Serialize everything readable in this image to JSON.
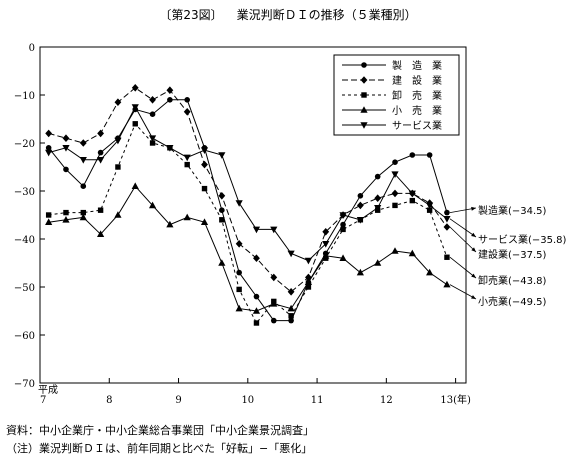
{
  "figure_number": "〔第23図〕",
  "figure_title": "業況判断ＤＩの推移（５業種別）",
  "notes": {
    "source": "資料：中小企業庁・中小企業総合事業団「中小企業景況調査」",
    "note": "（注）業況判断ＤＩは、前年同期と比べた「好転」−「悪化」"
  },
  "chart_data": {
    "type": "line",
    "title": "業況判断ＤＩの推移（５業種別）",
    "xlabel": "",
    "ylabel": "",
    "x_era_label": "平成",
    "x_ticks": [
      "7",
      "8",
      "9",
      "10",
      "11",
      "12",
      "13(年)"
    ],
    "xlim": [
      7,
      13.15
    ],
    "ylim": [
      -70,
      0
    ],
    "y_ticks": [
      0,
      -10,
      -20,
      -30,
      -40,
      -50,
      -60,
      -70
    ],
    "grid": false,
    "legend_position": "top-right",
    "series": [
      {
        "name": "製　造　業",
        "end_label": "製造業(−34.5)",
        "dash": "",
        "marker": "circle",
        "values": [
          -21,
          -25.5,
          -29,
          -22,
          -19,
          -13,
          -14,
          -11,
          -11,
          -21,
          -34,
          -47,
          -52,
          -57,
          -57,
          -49,
          -43,
          -37,
          -31,
          -27,
          -24,
          -22.5,
          -22.5,
          -34.5
        ]
      },
      {
        "name": "建　設　業",
        "end_label": "建設業(−37.5)",
        "dash": "6,3",
        "marker": "diamond",
        "values": [
          -18,
          -19,
          -20,
          -18,
          -11.5,
          -8.5,
          -11,
          -9,
          -13.5,
          -24.5,
          -31,
          -41,
          -44,
          -48,
          -51,
          -48,
          -38.5,
          -35,
          -33,
          -31.5,
          -30.5,
          -30.5,
          -32.5,
          -37.5
        ]
      },
      {
        "name": "卸　売　業",
        "end_label": "卸売業(−43.8)",
        "dash": "3,3",
        "marker": "square",
        "values": [
          -35,
          -34.5,
          -34.5,
          -34,
          -25,
          -16,
          -20,
          -21,
          -24.5,
          -29.5,
          -36,
          -50.5,
          -57.5,
          -53,
          -56,
          -50,
          -44,
          -38,
          -36,
          -34,
          -33,
          -32,
          -34,
          -43.8
        ]
      },
      {
        "name": "小　売　業",
        "end_label": "小売業(−49.5)",
        "dash": "",
        "marker": "triangle-up",
        "values": [
          -36.5,
          -36,
          -35.5,
          -39,
          -35,
          -29,
          -33,
          -37,
          -35.5,
          -36.5,
          -45,
          -54.5,
          -55,
          -53.5,
          -54.5,
          -49,
          -43.5,
          -44,
          -47,
          -45,
          -42.5,
          -43,
          -47,
          -49.5
        ]
      },
      {
        "name": "サービス業",
        "end_label": "サービス業(−35.8)",
        "dash": "",
        "marker": "triangle-down",
        "values": [
          -22,
          -21,
          -23.5,
          -23.5,
          -19.5,
          -12.5,
          -19,
          -21,
          -23,
          -21.5,
          -22.5,
          -32.5,
          -38,
          -38,
          -43,
          -44.5,
          -41,
          -35,
          -36,
          -33.5,
          -26.5,
          -30.5,
          -33,
          -35.8
        ]
      }
    ]
  }
}
